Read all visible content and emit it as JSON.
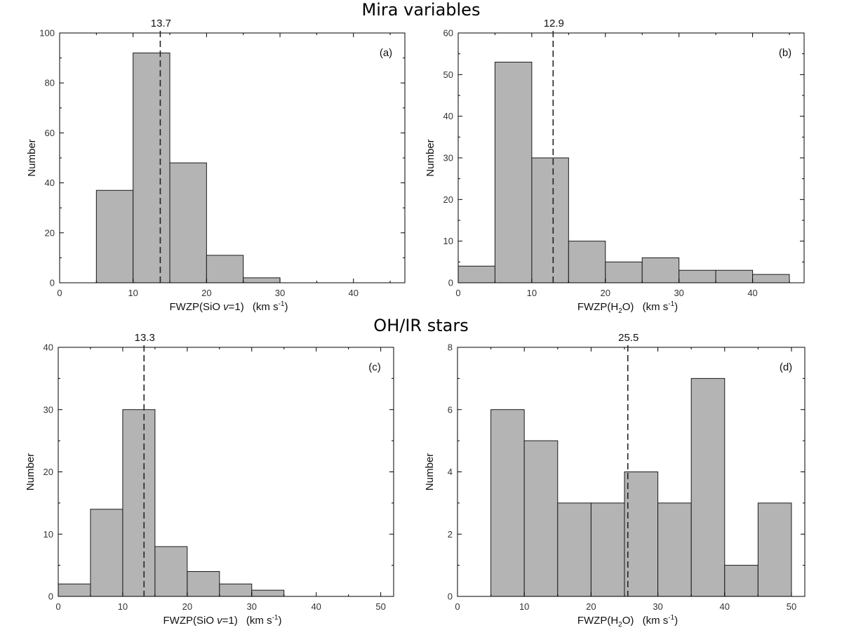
{
  "sections": {
    "top_title": "Mira variables",
    "bottom_title": "OH/IR stars"
  },
  "chart_data": [
    {
      "type": "bar",
      "panel": "(a)",
      "bin_edges": [
        5,
        10,
        15,
        20,
        25,
        30
      ],
      "values": [
        37,
        92,
        48,
        11,
        2
      ],
      "xlim": [
        0,
        47
      ],
      "ylim": [
        0,
        100
      ],
      "xticks": [
        0,
        10,
        20,
        30,
        40
      ],
      "yticks": [
        0,
        20,
        40,
        60,
        80,
        100
      ],
      "xlabel_main": "FWZP(SiO ",
      "xlabel_italic": "v",
      "xlabel_rest": "=1)",
      "xunit_main": "(km s",
      "xunit_sup": "-1",
      "xunit_close": ")",
      "ylabel": "Number",
      "median": 13.7,
      "median_label": "13.7"
    },
    {
      "type": "bar",
      "panel": "(b)",
      "bin_edges": [
        0,
        5,
        10,
        15,
        20,
        25,
        30,
        35,
        40,
        45
      ],
      "values": [
        4,
        53,
        30,
        10,
        5,
        6,
        3,
        3,
        2
      ],
      "xlim": [
        0,
        47
      ],
      "ylim": [
        0,
        60
      ],
      "xticks": [
        0,
        10,
        20,
        30,
        40
      ],
      "yticks": [
        0,
        10,
        20,
        30,
        40,
        50,
        60
      ],
      "xlabel_main": "FWZP(H",
      "xlabel_sub": "2",
      "xlabel_rest": "O)",
      "xunit_main": "(km s",
      "xunit_sup": "-1",
      "xunit_close": ")",
      "ylabel": "Number",
      "median": 12.9,
      "median_label": "12.9"
    },
    {
      "type": "bar",
      "panel": "(c)",
      "bin_edges": [
        0,
        5,
        10,
        15,
        20,
        25,
        30,
        35
      ],
      "values": [
        2,
        14,
        30,
        8,
        4,
        2,
        1
      ],
      "xlim": [
        0,
        52
      ],
      "ylim": [
        0,
        40
      ],
      "xticks": [
        0,
        10,
        20,
        30,
        40,
        50
      ],
      "yticks": [
        0,
        10,
        20,
        30,
        40
      ],
      "xlabel_main": "FWZP(SiO ",
      "xlabel_italic": "v",
      "xlabel_rest": "=1)",
      "xunit_main": "(km s",
      "xunit_sup": "-1",
      "xunit_close": ")",
      "ylabel": "Number",
      "median": 13.3,
      "median_label": "13.3"
    },
    {
      "type": "bar",
      "panel": "(d)",
      "bin_edges": [
        5,
        10,
        15,
        20,
        25,
        30,
        35,
        40,
        45,
        50
      ],
      "values": [
        6,
        5,
        3,
        3,
        4,
        3,
        7,
        1,
        3
      ],
      "xlim": [
        0,
        52
      ],
      "ylim": [
        0,
        8
      ],
      "xticks": [
        0,
        10,
        20,
        30,
        40,
        50
      ],
      "yticks": [
        0,
        2,
        4,
        6,
        8
      ],
      "xlabel_main": "FWZP(H",
      "xlabel_sub": "2",
      "xlabel_rest": "O)",
      "xunit_main": "(km s",
      "xunit_sup": "-1",
      "xunit_close": ")",
      "ylabel": "Number",
      "median": 25.5,
      "median_label": "25.5"
    }
  ],
  "style": {
    "bar_fill": "#b4b4b4",
    "bar_stroke": "#1a1a1a",
    "frame_stroke": "#000000",
    "median_stroke": "#222222"
  }
}
